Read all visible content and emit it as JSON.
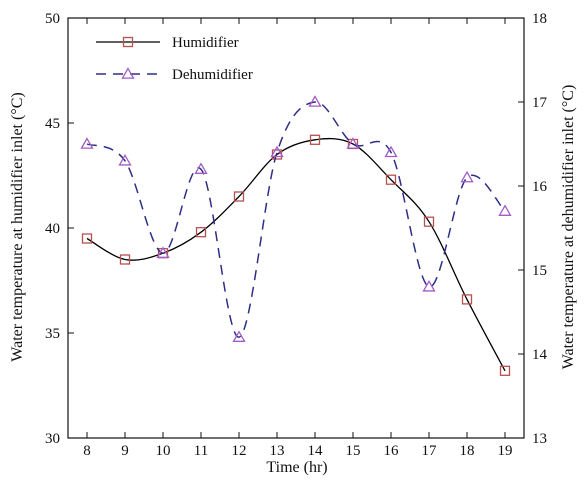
{
  "chart_data": {
    "type": "line",
    "xlabel": "Time (hr)",
    "ylabel_left": "Water temperature at humidifier inlet (°C)",
    "ylabel_right": "Water temperature at dehumidifier inlet (°C)",
    "xlim": [
      7.5,
      19.5
    ],
    "ylim_left": [
      30,
      50
    ],
    "ylim_right": [
      13,
      18
    ],
    "x_ticks": [
      8,
      9,
      10,
      11,
      12,
      13,
      14,
      15,
      16,
      17,
      18,
      19
    ],
    "y_left_ticks": [
      30,
      35,
      40,
      45,
      50
    ],
    "y_right_ticks": [
      13,
      14,
      15,
      16,
      17,
      18
    ],
    "legend_placement": "top-left",
    "grid": false,
    "series": [
      {
        "name": "Humidifier",
        "axis": "left",
        "marker": "square",
        "line_style": "solid",
        "color": "#000000",
        "marker_color": "#b5524f",
        "x": [
          8,
          9,
          10,
          11,
          12,
          13,
          14,
          15,
          16,
          17,
          18,
          19
        ],
        "values": [
          39.5,
          38.5,
          38.8,
          39.8,
          41.5,
          43.5,
          44.2,
          44.0,
          42.3,
          40.3,
          36.6,
          33.2
        ]
      },
      {
        "name": "Dehumidifier",
        "axis": "right",
        "marker": "triangle",
        "line_style": "dashed",
        "color": "#2e2e86",
        "marker_color": "#a25cc4",
        "x": [
          8,
          9,
          10,
          11,
          12,
          13,
          14,
          15,
          16,
          17,
          18,
          19
        ],
        "values": [
          16.5,
          16.3,
          15.2,
          16.2,
          14.2,
          16.4,
          17.0,
          16.5,
          16.4,
          14.8,
          16.1,
          15.7
        ]
      }
    ]
  }
}
